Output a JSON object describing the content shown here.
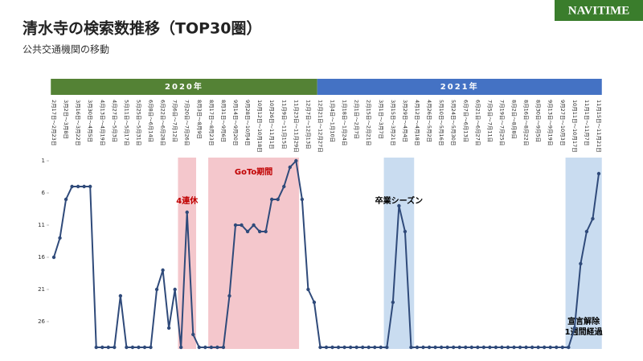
{
  "brand": "NAVITIME",
  "chart_data": {
    "type": "line",
    "title": "清水寺の検索数推移（TOP30圏）",
    "subtitle": "公共交通機関の移動",
    "categories": [
      "2月17日～2月23日",
      null,
      "3月2日～3月8日",
      null,
      "3月16日～3月22日",
      null,
      "3月30日～4月5日",
      null,
      "4月13日～4月19日",
      null,
      "4月27日～5月3日",
      null,
      "5月11日～5月17日",
      null,
      "5月25日～5月31日",
      null,
      "6月8日～6月14日",
      null,
      "6月22日～6月28日",
      null,
      "7月6日～7月12日",
      null,
      "7月20日～7月26日",
      null,
      "8月3日～8月9日",
      null,
      "8月17日～8月23日",
      null,
      "8月31日～9月6日",
      null,
      "9月14日～9月20日",
      null,
      "9月28日～10月4日",
      null,
      "10月12日～10月18日",
      null,
      "10月26日～11月1日",
      null,
      "11月9日～11月15日",
      null,
      "11月23日～11月29日",
      null,
      "12月7日～12月13日",
      null,
      "12月21日～12月27日",
      null,
      "1月4日～1月10日",
      null,
      "1月18日～1月24日",
      null,
      "2月1日～2月7日",
      null,
      "2月15日～2月21日",
      null,
      "3月1日～3月7日",
      null,
      "3月15日～3月21日",
      null,
      "3月29日～4月4日",
      null,
      "4月12日～4月18日",
      null,
      "4月26日～5月2日",
      null,
      "5月10日～5月16日",
      null,
      "5月24日～5月30日",
      null,
      "6月7日～6月13日",
      null,
      "6月21日～6月27日",
      null,
      "7月5日～7月11日",
      null,
      "7月19日～7月25日",
      null,
      "8月2日～8月8日",
      null,
      "8月16日～8月22日",
      null,
      "8月30日～9月5日",
      null,
      "9月13日～9月19日",
      null,
      "9月27日～10月3日",
      null,
      "10月11日～10月17日",
      null,
      "11月1日～11月7日",
      null,
      "11月15日～11月21日"
    ],
    "series": [
      {
        "name": "清水寺",
        "color": "#2f4a7a",
        "values": [
          16,
          13,
          7,
          5,
          5,
          5,
          5,
          30,
          30,
          30,
          30,
          22,
          30,
          30,
          30,
          30,
          30,
          21,
          18,
          27,
          21,
          30,
          9,
          28,
          30,
          30,
          30,
          30,
          30,
          22,
          11,
          11,
          12,
          11,
          12,
          12,
          7,
          7,
          5,
          2,
          1,
          7,
          21,
          23,
          30,
          30,
          30,
          30,
          30,
          30,
          30,
          30,
          30,
          30,
          30,
          30,
          23,
          8,
          12,
          30,
          30,
          30,
          30,
          30,
          30,
          30,
          30,
          30,
          30,
          30,
          30,
          30,
          30,
          30,
          30,
          30,
          30,
          30,
          30,
          30,
          30,
          30,
          30,
          30,
          30,
          30,
          27,
          17,
          12,
          10,
          3
        ]
      }
    ],
    "ylim": [
      1,
      30
    ],
    "y_inverted": true,
    "yticks": [
      1,
      6,
      11,
      16,
      21,
      26
    ],
    "periods": [
      {
        "label": "2020年",
        "color": "#548235",
        "from": 0,
        "to": 43
      },
      {
        "label": "2021年",
        "color": "#4472c4",
        "from": 44,
        "to": 90
      }
    ],
    "annotations": [
      {
        "text": "4連休",
        "from": 21,
        "to": 23,
        "color": "#f4c7cc",
        "text_color": "#c00000"
      },
      {
        "text": "GoTo期間",
        "from": 26,
        "to": 40,
        "color": "#f4c7cc",
        "text_color": "#c00000"
      },
      {
        "text": "卒業シーズン",
        "from": 55,
        "to": 59,
        "color": "#c9dcf0",
        "text_color": "#000000"
      },
      {
        "text": "宣言解除\n1週間経過",
        "from": 85,
        "to": 90,
        "color": "#c9dcf0",
        "text_color": "#000000"
      }
    ]
  }
}
